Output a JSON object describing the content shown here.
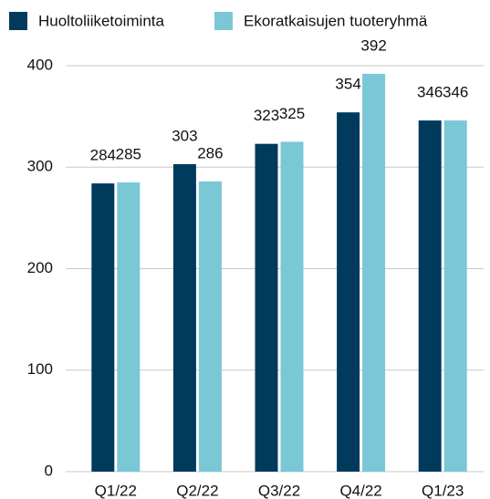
{
  "chart_data": {
    "type": "bar",
    "categories": [
      "Q1/22",
      "Q2/22",
      "Q3/22",
      "Q4/22",
      "Q1/23"
    ],
    "series": [
      {
        "name": "Huoltoliiketoiminta",
        "color": "#003a5d",
        "values": [
          284,
          303,
          323,
          354,
          346
        ]
      },
      {
        "name": "Ekoratkaisujen tuoteryhmä",
        "color": "#7ac7d6",
        "values": [
          285,
          286,
          325,
          392,
          346
        ]
      }
    ],
    "ylim": [
      0,
      400
    ],
    "yticks": [
      0,
      100,
      200,
      300,
      400
    ],
    "grid": true
  }
}
